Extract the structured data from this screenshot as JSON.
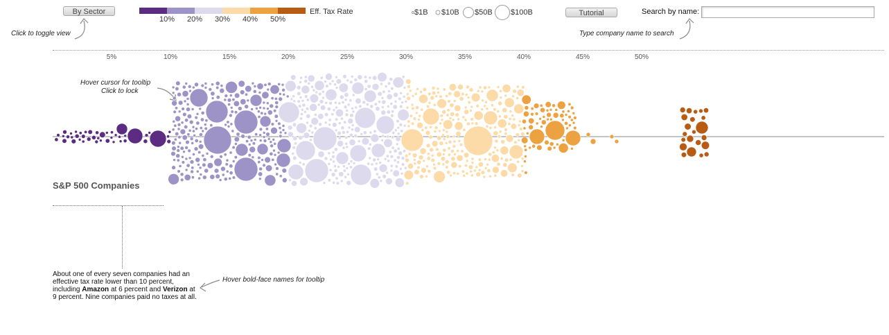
{
  "controls": {
    "sector_button": "By Sector",
    "tutorial_button": "Tutorial",
    "search_label": "Search by name:",
    "search_value": ""
  },
  "hints": {
    "toggle": "Click to toggle view",
    "search": "Type company name to search",
    "tooltip_line1": "Hover cursor for tooltip",
    "tooltip_line2": "Click to lock",
    "bold_names": "Hover bold-face names for tooltip"
  },
  "legend": {
    "title": "Eff. Tax Rate",
    "colors": [
      "#5b2c82",
      "#9e93c6",
      "#dcdaec",
      "#fcdba8",
      "#eda241",
      "#b85c13"
    ],
    "labels": [
      "10%",
      "20%",
      "30%",
      "40%",
      "50%"
    ]
  },
  "size_legend": {
    "labels": [
      "$1B",
      "$10B",
      "$50B",
      "$100B"
    ]
  },
  "axis": {
    "ticks": [
      "5%",
      "10%",
      "15%",
      "20%",
      "25%",
      "30%",
      "35%",
      "40%",
      "45%",
      "50%"
    ]
  },
  "group": {
    "title": "S&P 500 Companies"
  },
  "blurb": {
    "part1": "About one of every seven companies had an effective tax rate lower than 10 percent, including ",
    "amazon": "Amazon",
    "part2": " at 6 percent and ",
    "verizon": "Verizon",
    "part3": " at 9 percent. Nine companies paid no taxes at all."
  }
}
